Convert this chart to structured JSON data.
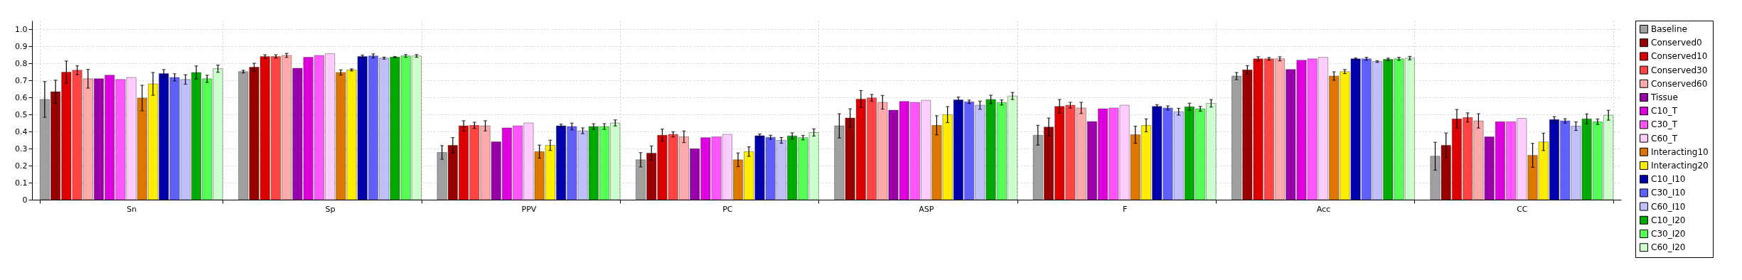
{
  "chart_data": {
    "type": "bar",
    "categories": [
      "Sn",
      "Sp",
      "PPV",
      "PC",
      "ASP",
      "F",
      "Acc",
      "CC"
    ],
    "ylim": [
      0,
      1.05
    ],
    "yticks": [
      0,
      0.1,
      0.2,
      0.3,
      0.4,
      0.5,
      0.6,
      0.7,
      0.8,
      0.9,
      {
        "value": 1,
        "label": "1.0"
      }
    ],
    "grid": true,
    "legend": "right",
    "series": [
      {
        "name": "Baseline",
        "color": "#a0a0a0",
        "values": [
          0.588,
          0.751,
          0.277,
          0.234,
          0.433,
          0.378,
          0.725,
          0.255
        ],
        "errors": [
          0.105,
          0.008,
          0.04,
          0.042,
          0.071,
          0.058,
          0.021,
          0.082
        ]
      },
      {
        "name": "Conserved0",
        "color": "#990000",
        "values": [
          0.633,
          0.777,
          0.319,
          0.273,
          0.479,
          0.426,
          0.761,
          0.319
        ],
        "errors": [
          0.068,
          0.023,
          0.045,
          0.042,
          0.054,
          0.053,
          0.025,
          0.072
        ]
      },
      {
        "name": "Conserved10",
        "color": "#dd0000",
        "values": [
          0.748,
          0.84,
          0.433,
          0.378,
          0.59,
          0.547,
          0.826,
          0.474
        ],
        "errors": [
          0.065,
          0.01,
          0.03,
          0.036,
          0.05,
          0.04,
          0.012,
          0.055
        ]
      },
      {
        "name": "Conserved30",
        "color": "#ff4444",
        "values": [
          0.759,
          0.84,
          0.436,
          0.383,
          0.597,
          0.554,
          0.826,
          0.482
        ],
        "errors": [
          0.026,
          0.01,
          0.018,
          0.015,
          0.02,
          0.017,
          0.008,
          0.027
        ]
      },
      {
        "name": "Conserved60",
        "color": "#ffaaaa",
        "values": [
          0.709,
          0.846,
          0.433,
          0.369,
          0.571,
          0.538,
          0.826,
          0.462
        ],
        "errors": [
          0.055,
          0.012,
          0.03,
          0.034,
          0.04,
          0.033,
          0.012,
          0.042
        ]
      },
      {
        "name": "Tissue",
        "color": "#9900aa",
        "values": [
          0.709,
          0.771,
          0.34,
          0.299,
          0.525,
          0.458,
          0.764,
          0.369
        ]
      },
      {
        "name": "C10_T",
        "color": "#dd00dd",
        "values": [
          0.73,
          0.835,
          0.421,
          0.364,
          0.576,
          0.533,
          0.818,
          0.457
        ]
      },
      {
        "name": "C30_T",
        "color": "#ff55ff",
        "values": [
          0.705,
          0.846,
          0.433,
          0.369,
          0.571,
          0.538,
          0.826,
          0.457
        ]
      },
      {
        "name": "C60_T",
        "color": "#ffccff",
        "values": [
          0.717,
          0.856,
          0.45,
          0.383,
          0.583,
          0.554,
          0.835,
          0.477
        ]
      },
      {
        "name": "Interacting10",
        "color": "#dd7700",
        "values": [
          0.596,
          0.746,
          0.282,
          0.234,
          0.436,
          0.381,
          0.725,
          0.26
        ],
        "errors": [
          0.075,
          0.015,
          0.038,
          0.04,
          0.056,
          0.05,
          0.025,
          0.07
        ]
      },
      {
        "name": "Interacting20",
        "color": "#ffee00",
        "values": [
          0.679,
          0.761,
          0.319,
          0.282,
          0.499,
          0.436,
          0.751,
          0.339
        ],
        "errors": [
          0.067,
          0.006,
          0.03,
          0.028,
          0.047,
          0.038,
          0.012,
          0.051
        ]
      },
      {
        "name": "C10_I10",
        "color": "#0000aa",
        "values": [
          0.74,
          0.84,
          0.433,
          0.375,
          0.585,
          0.547,
          0.826,
          0.47
        ],
        "errors": [
          0.023,
          0.008,
          0.01,
          0.01,
          0.017,
          0.01,
          0.005,
          0.017
        ]
      },
      {
        "name": "C30_I10",
        "color": "#6060ff",
        "values": [
          0.717,
          0.843,
          0.429,
          0.366,
          0.574,
          0.538,
          0.826,
          0.462
        ],
        "errors": [
          0.021,
          0.012,
          0.02,
          0.012,
          0.01,
          0.012,
          0.009,
          0.013
        ]
      },
      {
        "name": "C60_I10",
        "color": "#c0c0ff",
        "values": [
          0.705,
          0.83,
          0.404,
          0.348,
          0.554,
          0.516,
          0.81,
          0.431
        ],
        "errors": [
          0.028,
          0.006,
          0.017,
          0.017,
          0.024,
          0.02,
          0.005,
          0.025
        ]
      },
      {
        "name": "C10_I20",
        "color": "#00aa00",
        "values": [
          0.746,
          0.836,
          0.429,
          0.374,
          0.588,
          0.545,
          0.823,
          0.474
        ],
        "errors": [
          0.038,
          0.003,
          0.016,
          0.018,
          0.025,
          0.021,
          0.007,
          0.029
        ]
      },
      {
        "name": "C30_I20",
        "color": "#55ff55",
        "values": [
          0.709,
          0.843,
          0.429,
          0.364,
          0.57,
          0.533,
          0.826,
          0.457
        ],
        "errors": [
          0.021,
          0.008,
          0.017,
          0.013,
          0.015,
          0.014,
          0.009,
          0.016
        ]
      },
      {
        "name": "C60_I20",
        "color": "#ccffcc",
        "values": [
          0.768,
          0.843,
          0.45,
          0.394,
          0.608,
          0.565,
          0.83,
          0.495
        ],
        "errors": [
          0.021,
          0.008,
          0.018,
          0.021,
          0.021,
          0.022,
          0.01,
          0.029
        ]
      }
    ]
  }
}
